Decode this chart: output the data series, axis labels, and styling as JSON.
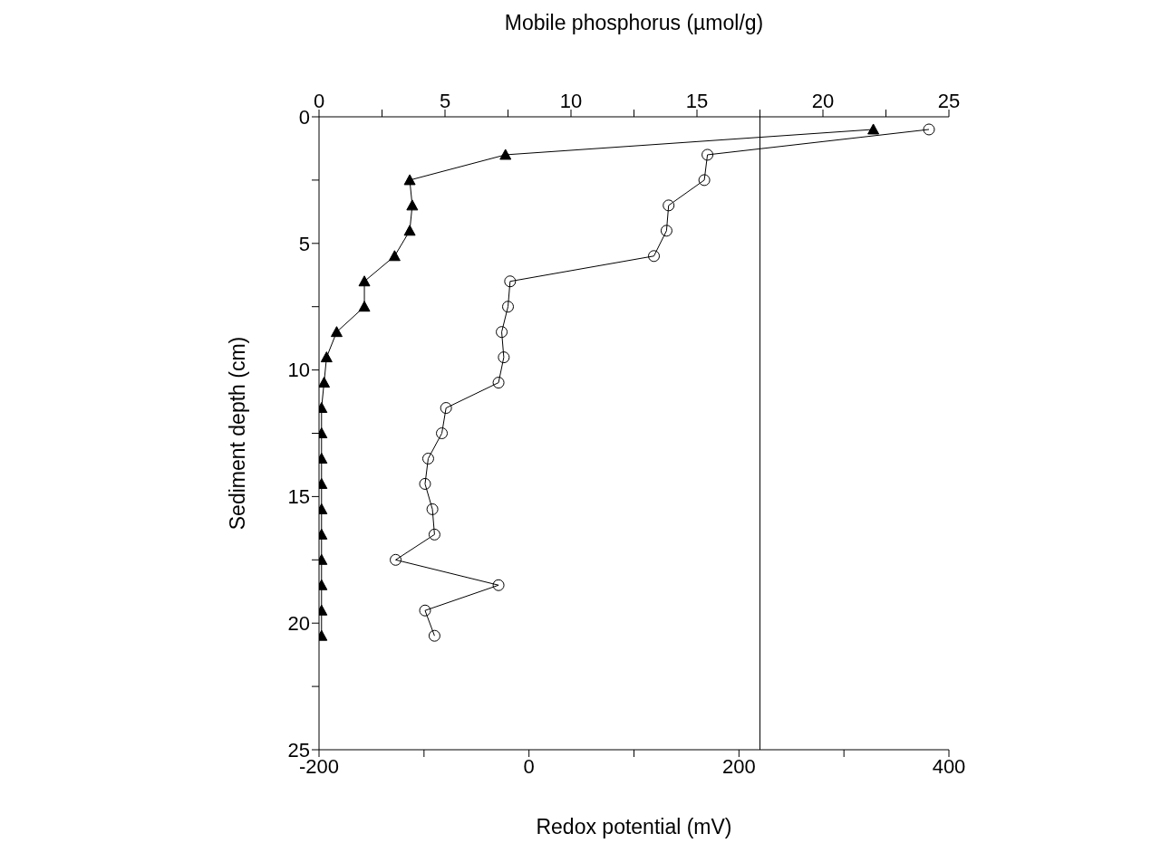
{
  "chart_data": {
    "type": "line",
    "xlabel": "Redox potential (mV)",
    "x2label": "Mobile phosphorus (µmol/g)",
    "ylabel": "Sediment depth (cm)",
    "xlim": [
      -200,
      400
    ],
    "xticks": [
      -200,
      {
        "value": -100,
        "label": null
      },
      0,
      {
        "value": 100,
        "label": null
      },
      200,
      {
        "value": 300,
        "label": null
      },
      400
    ],
    "x2lim": [
      0,
      25
    ],
    "x2ticks": [
      0,
      {
        "value": 2.5,
        "label": null
      },
      5,
      {
        "value": 7.5,
        "label": null
      },
      10,
      {
        "value": 12.5,
        "label": null
      },
      15,
      {
        "value": 17.5,
        "label": null
      },
      20,
      {
        "value": 22.5,
        "label": null
      },
      25
    ],
    "ylim": [
      25,
      0
    ],
    "yticks": [
      0,
      {
        "value": 2.5,
        "label": null
      },
      5,
      {
        "value": 7.5,
        "label": null
      },
      10,
      {
        "value": 12.5,
        "label": null
      },
      15,
      {
        "value": 17.5,
        "label": null
      },
      20,
      {
        "value": 22.5,
        "label": null
      },
      25
    ],
    "grid": false,
    "legend": false,
    "ref_lines": [
      {
        "axis": "x",
        "value": 220,
        "color": "#000000"
      }
    ],
    "series": [
      {
        "axis": "x2",
        "marker": "triangle",
        "color": "#000000",
        "x": [
          22.0,
          7.4,
          3.6,
          3.7,
          3.6,
          3.0,
          1.8,
          1.8,
          0.7,
          0.3,
          0.2,
          0.1,
          0.1,
          0.1,
          0.1,
          0.1,
          0.1,
          0.1,
          0.1,
          0.1,
          0.1
        ],
        "values": [
          0.5,
          1.5,
          2.5,
          3.5,
          4.5,
          5.5,
          6.5,
          7.5,
          8.5,
          9.5,
          10.5,
          11.5,
          12.5,
          13.5,
          14.5,
          15.5,
          16.5,
          17.5,
          18.5,
          19.5,
          20.5
        ]
      },
      {
        "marker": "circle",
        "color": "#000000",
        "x": [
          381,
          170,
          167,
          133,
          131,
          119,
          -18,
          -20,
          -26,
          -24,
          -29,
          -79,
          -83,
          -96,
          -99,
          -92,
          -90,
          -127,
          -29,
          -99,
          -90
        ],
        "values": [
          0.5,
          1.5,
          2.5,
          3.5,
          4.5,
          5.5,
          6.5,
          7.5,
          8.5,
          9.5,
          10.5,
          11.5,
          12.5,
          13.5,
          14.5,
          15.5,
          16.5,
          17.5,
          18.5,
          19.5,
          20.5
        ]
      }
    ]
  }
}
